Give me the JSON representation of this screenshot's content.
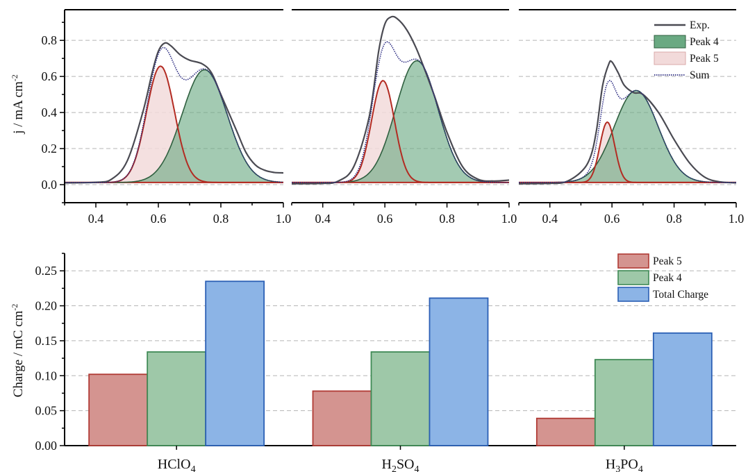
{
  "chart_data": [
    {
      "type": "line",
      "panels": [
        {
          "x_range": [
            0.3,
            1.0
          ],
          "exp": [
            [
              0.3,
              0.01
            ],
            [
              0.4,
              0.013
            ],
            [
              0.45,
              0.03
            ],
            [
              0.5,
              0.13
            ],
            [
              0.55,
              0.4
            ],
            [
              0.58,
              0.62
            ],
            [
              0.6,
              0.74
            ],
            [
              0.62,
              0.785
            ],
            [
              0.64,
              0.77
            ],
            [
              0.67,
              0.72
            ],
            [
              0.7,
              0.69
            ],
            [
              0.74,
              0.67
            ],
            [
              0.77,
              0.62
            ],
            [
              0.8,
              0.5
            ],
            [
              0.85,
              0.3
            ],
            [
              0.88,
              0.18
            ],
            [
              0.91,
              0.11
            ],
            [
              0.94,
              0.08
            ],
            [
              0.97,
              0.068
            ],
            [
              1.0,
              0.065
            ]
          ],
          "peak4": {
            "amp": 0.625,
            "center": 0.748,
            "sigma": 0.072
          },
          "peak5": {
            "amp": 0.645,
            "center": 0.607,
            "sigma": 0.045
          }
        },
        {
          "x_range": [
            0.3,
            1.0
          ],
          "exp": [
            [
              0.3,
              0.005
            ],
            [
              0.4,
              0.007
            ],
            [
              0.45,
              0.02
            ],
            [
              0.5,
              0.1
            ],
            [
              0.55,
              0.38
            ],
            [
              0.58,
              0.74
            ],
            [
              0.6,
              0.89
            ],
            [
              0.62,
              0.93
            ],
            [
              0.64,
              0.92
            ],
            [
              0.67,
              0.86
            ],
            [
              0.7,
              0.76
            ],
            [
              0.73,
              0.63
            ],
            [
              0.76,
              0.49
            ],
            [
              0.8,
              0.29
            ],
            [
              0.85,
              0.1
            ],
            [
              0.9,
              0.03
            ],
            [
              0.95,
              0.02
            ],
            [
              1.0,
              0.025
            ]
          ],
          "peak4": {
            "amp": 0.675,
            "center": 0.703,
            "sigma": 0.068
          },
          "peak5": {
            "amp": 0.565,
            "center": 0.594,
            "sigma": 0.037
          }
        },
        {
          "x_range": [
            0.3,
            1.0
          ],
          "exp": [
            [
              0.3,
              0.005
            ],
            [
              0.4,
              0.007
            ],
            [
              0.45,
              0.015
            ],
            [
              0.5,
              0.07
            ],
            [
              0.53,
              0.15
            ],
            [
              0.55,
              0.3
            ],
            [
              0.57,
              0.55
            ],
            [
              0.59,
              0.67
            ],
            [
              0.6,
              0.68
            ],
            [
              0.62,
              0.62
            ],
            [
              0.64,
              0.55
            ],
            [
              0.67,
              0.51
            ],
            [
              0.7,
              0.5
            ],
            [
              0.75,
              0.4
            ],
            [
              0.8,
              0.25
            ],
            [
              0.85,
              0.12
            ],
            [
              0.9,
              0.04
            ],
            [
              0.95,
              0.015
            ],
            [
              1.0,
              0.01
            ]
          ],
          "peak4": {
            "amp": 0.51,
            "center": 0.678,
            "sigma": 0.071
          },
          "peak5": {
            "amp": 0.335,
            "center": 0.585,
            "sigma": 0.024
          }
        }
      ],
      "ylabel": "j / mA cm",
      "ylabel_sup": "-2",
      "ylim": [
        -0.1,
        0.97
      ],
      "y_ticks": [
        "0.0",
        "0.2",
        "0.4",
        "0.6",
        "0.8"
      ],
      "x_ticks": [
        "0.4",
        "0.6",
        "0.8",
        "1.0"
      ],
      "grid": "horizontal dashed",
      "legend_position": "top-right",
      "legend": [
        {
          "label": "Exp.",
          "style": "solid"
        },
        {
          "label": "Peak 4",
          "style": "fill"
        },
        {
          "label": "Peak 5",
          "style": "fill"
        },
        {
          "label": "Sum",
          "style": "dotted"
        }
      ]
    },
    {
      "type": "bar",
      "categories": [
        {
          "main": "H",
          "sub": "",
          "rest": "ClO",
          "sub2": "4"
        },
        {
          "main": "H",
          "sub": "2",
          "rest": "SO",
          "sub2": "4"
        },
        {
          "main": "H",
          "sub": "3",
          "rest": "PO",
          "sub2": "4"
        }
      ],
      "series": [
        {
          "name": "Peak 5",
          "values": [
            0.102,
            0.078,
            0.039
          ]
        },
        {
          "name": "Peak 4",
          "values": [
            0.134,
            0.134,
            0.123
          ]
        },
        {
          "name": "Total Charge",
          "values": [
            0.235,
            0.211,
            0.161
          ]
        }
      ],
      "ylabel": "Charge / mC cm",
      "ylabel_sup": "-2",
      "ylim": [
        0,
        0.275
      ],
      "y_ticks": [
        "0.00",
        "0.05",
        "0.10",
        "0.15",
        "0.20",
        "0.25"
      ],
      "grid": "horizontal dashed",
      "legend_position": "top-right"
    }
  ],
  "colors": {
    "exp": "#4a4a52",
    "sum": "#2a2a80",
    "peak4_line": "#2f5f3f",
    "peak4_fill": "#6aa982",
    "peak5_line": "#b32b22",
    "peak5_fill": "#f2dada",
    "bar_peak5_fill": "#d49490",
    "bar_peak5_edge": "#b03a34",
    "bar_peak4_fill": "#9ec8a8",
    "bar_peak4_edge": "#3f8a55",
    "bar_total_fill": "#8cb4e6",
    "bar_total_edge": "#2b5fb5",
    "grid": "#b5b5b5"
  }
}
